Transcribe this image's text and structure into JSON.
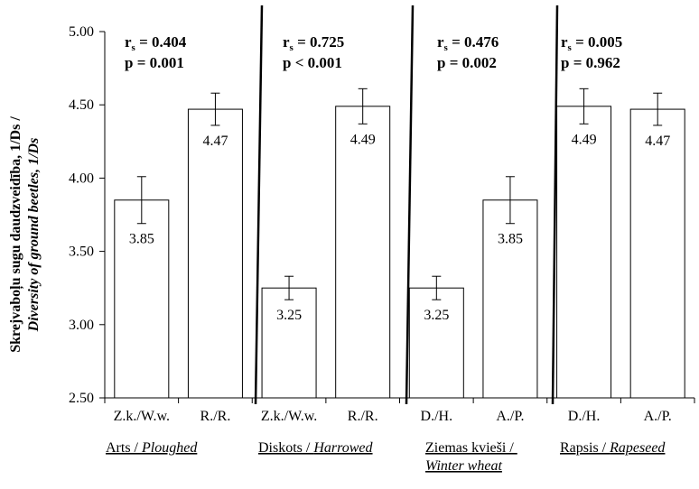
{
  "chart_data": {
    "type": "bar",
    "ylabel_line1": "Skrejvaboļu sugu daudzveidība, 1/Ds /",
    "ylabel_line2": "Diversity of ground beetles, 1/Ds",
    "ylim": [
      2.5,
      5.0
    ],
    "yticks": [
      "2.50",
      "3.00",
      "3.50",
      "4.00",
      "4.50",
      "5.00"
    ],
    "ytick_values": [
      2.5,
      3.0,
      3.5,
      4.0,
      4.5,
      5.0
    ],
    "categories": [
      "Z.k./W.w.",
      "R./R.",
      "Z.k./W.w.",
      "R./R.",
      "D./H.",
      "A./P.",
      "D./H.",
      "A./P."
    ],
    "values": [
      3.85,
      4.47,
      3.25,
      4.49,
      3.25,
      3.85,
      4.49,
      4.47
    ],
    "value_labels": [
      "3.85",
      "4.47",
      "3.25",
      "4.49",
      "3.25",
      "3.85",
      "4.49",
      "4.47"
    ],
    "errors": [
      0.16,
      0.11,
      0.08,
      0.12,
      0.08,
      0.16,
      0.12,
      0.11
    ],
    "groups": [
      {
        "label_plain": "Arts / ",
        "label_italic": "Ploughed",
        "r_prefix": "r",
        "r_sub": "s",
        "r_value": " = 0.404",
        "p_text": "p = 0.001"
      },
      {
        "label_plain": "Diskots / ",
        "label_italic": "Harrowed",
        "r_prefix": "r",
        "r_sub": "s",
        "r_value": " = 0.725",
        "p_text": "p < 0.001"
      },
      {
        "label_plain": "Ziemas kvieši / ",
        "label_italic": "Winter wheat",
        "r_prefix": "r",
        "r_sub": "s",
        "r_value": " = 0.476",
        "p_text": "p = 0.002"
      },
      {
        "label_plain": "Rapsis / ",
        "label_italic": "Rapeseed",
        "r_prefix": "r",
        "r_sub": "s",
        "r_value": " = 0.005",
        "p_text": "p = 0.962"
      }
    ],
    "grid": false,
    "colors": {
      "bar_fill": "#ffffff",
      "stroke": "#000000"
    }
  }
}
